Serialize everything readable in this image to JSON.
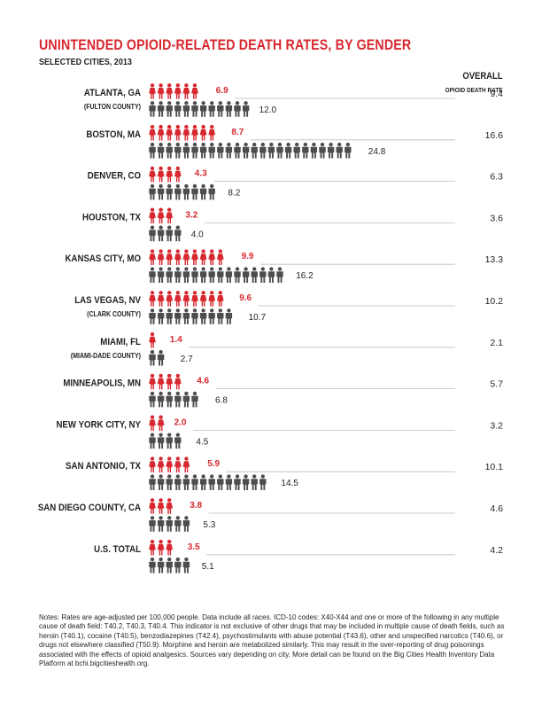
{
  "title": "UNINTENDED OPIOID-RELATED DEATH RATES, BY GENDER",
  "subtitle": "SELECTED CITIES, 2013",
  "overall_header": {
    "line1": "OVERALL",
    "line2": "OPIOID DEATH RATE"
  },
  "colors": {
    "female": "#d7282f",
    "male": "#4d4d4f",
    "text": "#231f20",
    "rule": "#bcbec0"
  },
  "icons": {
    "female": "female-figure-icon",
    "male": "male-figure-icon"
  },
  "chart_data": {
    "type": "bar",
    "title": "UNINTENDED OPIOID-RELATED DEATH RATES, BY GENDER",
    "subtitle": "SELECTED CITIES, 2013",
    "unit": "deaths per 100,000 people (age-adjusted); one figure per 1.0",
    "categories": [
      "ATLANTA, GA",
      "BOSTON, MA",
      "DENVER, CO",
      "HOUSTON, TX",
      "KANSAS CITY, MO",
      "LAS VEGAS, NV",
      "MIAMI, FL",
      "MINNEAPOLIS, MN",
      "NEW YORK CITY, NY",
      "SAN ANTONIO, TX",
      "SAN DIEGO COUNTY, CA",
      "U.S. TOTAL"
    ],
    "sublabels": [
      "(FULTON COUNTY)",
      "",
      "",
      "",
      "",
      "(CLARK COUNTY)",
      "(MIAMI-DADE COUNTY)",
      "",
      "",
      "",
      "",
      ""
    ],
    "series": [
      {
        "name": "Female",
        "values": [
          6.9,
          8.7,
          4.3,
          3.2,
          9.9,
          9.6,
          1.4,
          4.6,
          2.0,
          5.9,
          3.8,
          3.5
        ]
      },
      {
        "name": "Male",
        "values": [
          12.0,
          24.8,
          8.2,
          4.0,
          16.2,
          10.7,
          2.7,
          6.8,
          4.5,
          14.5,
          5.3,
          5.1
        ]
      }
    ],
    "overall_label": "OVERALL OPIOID DEATH RATE",
    "overall": [
      "9.4",
      "16.6",
      "6.3",
      "3.6",
      "13.3",
      "10.2",
      "2.1",
      "5.7",
      "3.2",
      "10.1",
      "4.6",
      "4.2"
    ]
  },
  "notes": "Notes: Rates are age-adjusted per 100,000 people. Data include all races. ICD-10 codes: X40-X44 and one or more of the following in any multiple cause of death field: T40.2, T40.3, T40.4. This indicator is not exclusive of other drugs that may be included in multiple cause of death fields, such as heroin (T40.1), cocaine (T40.5), benzodiazepines (T42.4), psychostimulants with abuse potential (T43.6), other and unspecified narcotics (T40.6), or drugs not elsewhere classified (T50.9). Morphine and heroin are metabolized similarly. This may result in the over-reporting of drug poisonings associated with the effects of opioid analgesics. Sources vary depending on city. More detail can be found on the Big Cities Health Inventory Data Platform at bchi.bigcitieshealth.org."
}
